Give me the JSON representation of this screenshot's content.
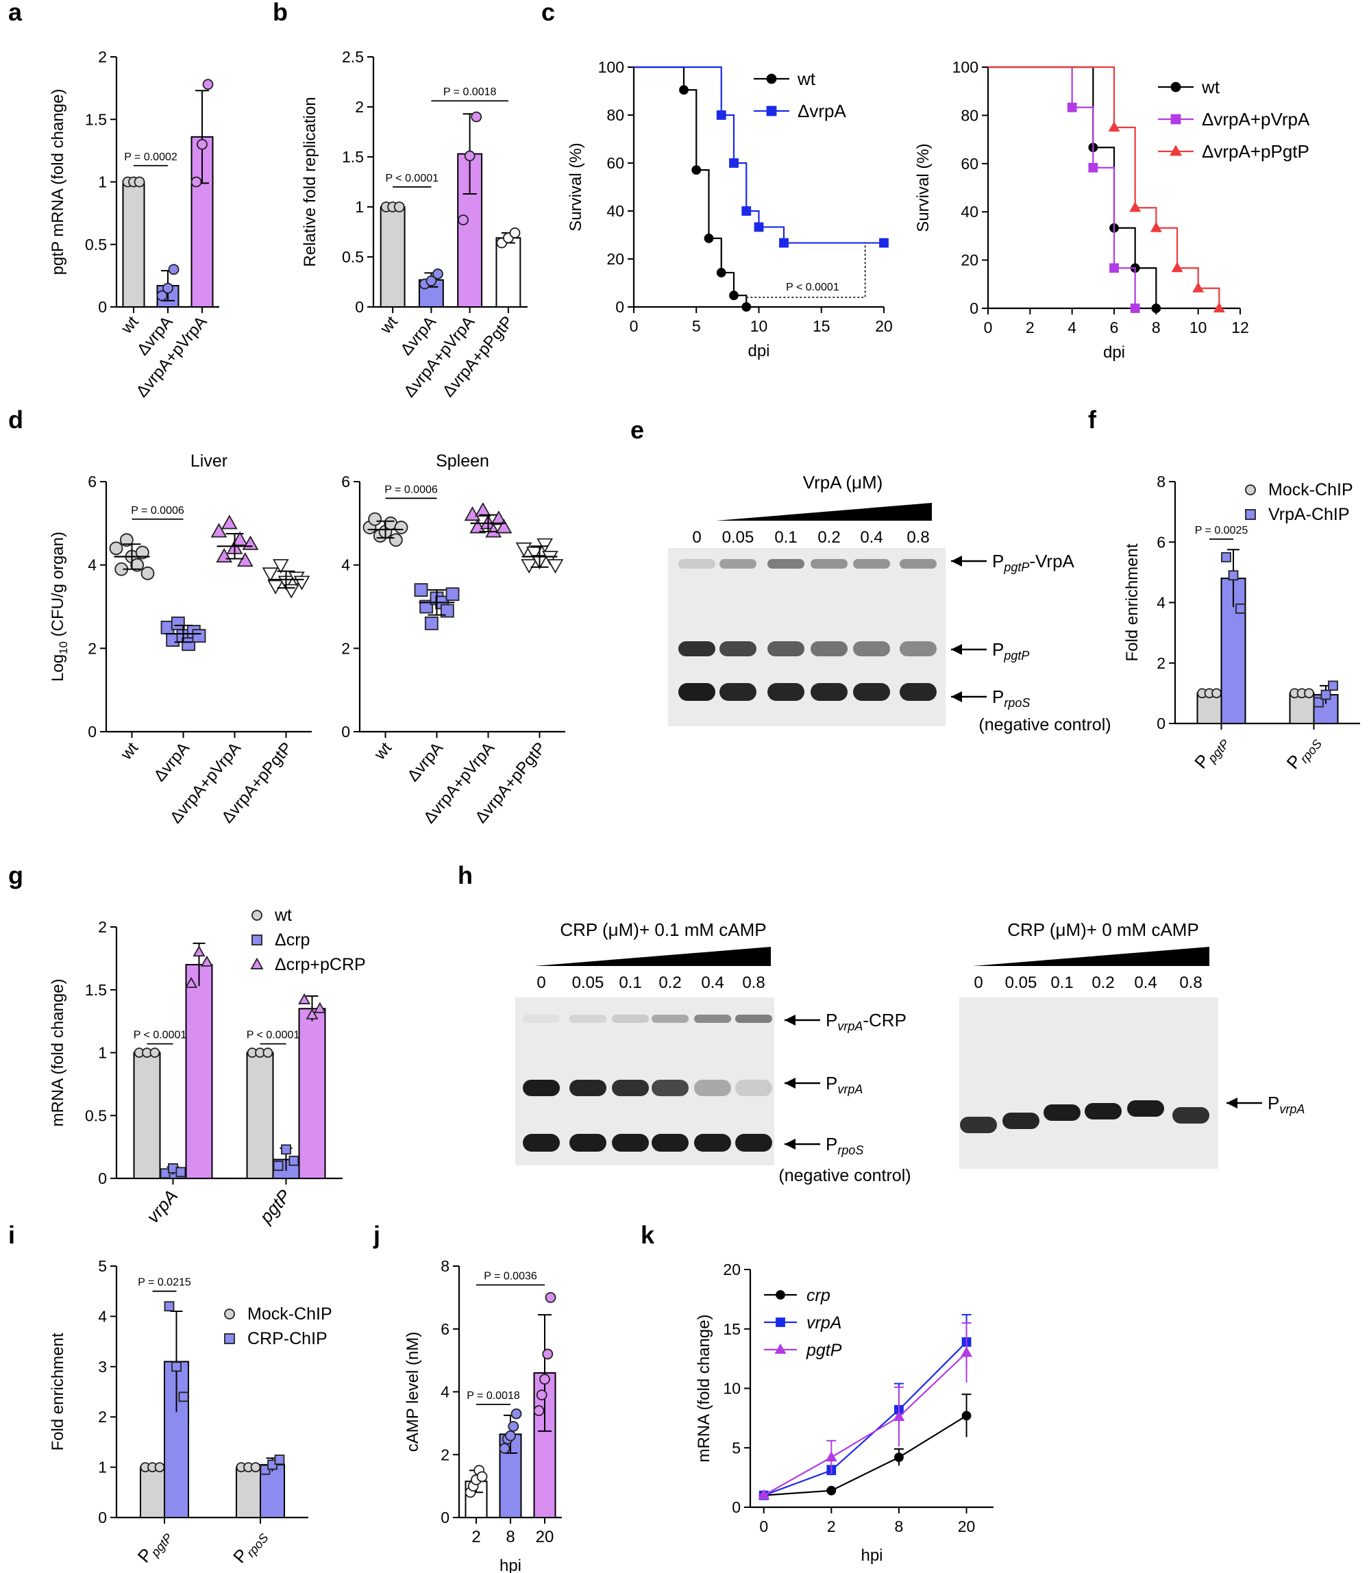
{
  "colors": {
    "wt": "#d3d3d3",
    "mutant": "#8b8bf0",
    "complement": "#d98ef2",
    "open": "#ffffff",
    "blue_line": "#1a2ae8",
    "purple_line": "#b23be6",
    "red_line": "#ee3b3b",
    "black": "#000000"
  },
  "chart_data": [
    {
      "panel": "a",
      "type": "bar",
      "title": "",
      "ylabel": "pgtP mRNA (fold change)",
      "ylim": [
        0,
        2.0
      ],
      "yticks": [
        0,
        0.5,
        1.0,
        1.5,
        2.0
      ],
      "categories": [
        "wt",
        "ΔvrpA",
        "ΔvrpA+pVrpA"
      ],
      "values": [
        1.0,
        0.17,
        1.36
      ],
      "errors": [
        0,
        0.12,
        0.37
      ],
      "points": [
        [
          1.0,
          1.0,
          1.0
        ],
        [
          0.09,
          0.15,
          0.3
        ],
        [
          1.0,
          1.3,
          1.78
        ]
      ],
      "colors": [
        "wt",
        "mutant",
        "complement"
      ],
      "markers": [
        "circle",
        "circle",
        "circle"
      ],
      "comparisons": [
        {
          "from": 0,
          "to": 1,
          "y": 1.13,
          "label": "P = 0.0002"
        }
      ]
    },
    {
      "panel": "b",
      "type": "bar",
      "title": "",
      "ylabel": "Relative fold replication",
      "ylim": [
        0,
        2.5
      ],
      "yticks": [
        0,
        0.5,
        1.0,
        1.5,
        2.0,
        2.5
      ],
      "categories": [
        "wt",
        "ΔvrpA",
        "ΔvrpA+pVrpA",
        "ΔvrpA+pPgtP"
      ],
      "values": [
        1.0,
        0.27,
        1.53,
        0.69
      ],
      "errors": [
        0,
        0.07,
        0.4,
        0.05
      ],
      "points": [
        [
          1.0,
          1.0,
          1.0
        ],
        [
          0.23,
          0.26,
          0.33
        ],
        [
          0.87,
          1.51,
          1.9
        ],
        [
          0.64,
          0.69,
          0.74
        ]
      ],
      "colors": [
        "wt",
        "mutant",
        "complement",
        "open"
      ],
      "markers": [
        "circle",
        "circle",
        "circle",
        "circle"
      ],
      "comparisons": [
        {
          "from": 0,
          "to": 1,
          "y": 1.2,
          "label": "P < 0.0001"
        },
        {
          "from": 1,
          "to": 3,
          "y": 2.06,
          "label": "P = 0.0018"
        }
      ]
    },
    {
      "panel": "c-left",
      "type": "line",
      "subtype": "survival",
      "xlabel": "dpi",
      "ylabel": "Survival (%)",
      "xlim": [
        0,
        20
      ],
      "ylim": [
        0,
        100
      ],
      "xticks": [
        0,
        5,
        10,
        15,
        20
      ],
      "yticks": [
        0,
        20,
        40,
        60,
        80,
        100
      ],
      "series": [
        {
          "name": "wt",
          "color": "black",
          "marker": "circle",
          "x": [
            0,
            4,
            5,
            6,
            7,
            8,
            9
          ],
          "y": [
            100,
            90.5,
            57.1,
            28.6,
            14.3,
            4.8,
            0
          ]
        },
        {
          "name": "ΔvrpA",
          "color": "blue_line",
          "marker": "square",
          "x": [
            0,
            7,
            8,
            9,
            10,
            12,
            20
          ],
          "y": [
            100,
            80,
            60,
            40,
            33.3,
            26.7,
            26.7
          ]
        }
      ],
      "annotation": "P < 0.0001"
    },
    {
      "panel": "c-right",
      "type": "line",
      "subtype": "survival",
      "xlabel": "dpi",
      "ylabel": "Survival (%)",
      "xlim": [
        0,
        12
      ],
      "ylim": [
        0,
        100
      ],
      "xticks": [
        0,
        2,
        4,
        6,
        8,
        10,
        12
      ],
      "yticks": [
        0,
        20,
        40,
        60,
        80,
        100
      ],
      "series": [
        {
          "name": "wt",
          "color": "black",
          "marker": "circle",
          "x": [
            0,
            5,
            6,
            7,
            8
          ],
          "y": [
            100,
            66.7,
            33.3,
            16.7,
            0
          ]
        },
        {
          "name": "ΔvrpA+pVrpA",
          "color": "purple_line",
          "marker": "square",
          "x": [
            0,
            4,
            5,
            6,
            7
          ],
          "y": [
            100,
            83.3,
            58.3,
            16.7,
            0
          ]
        },
        {
          "name": "ΔvrpA+pPgtP",
          "color": "red_line",
          "marker": "triangle",
          "x": [
            0,
            6,
            7,
            8,
            9,
            10,
            11
          ],
          "y": [
            100,
            75,
            41.7,
            33.3,
            16.7,
            8.3,
            0
          ]
        }
      ]
    },
    {
      "panel": "d-liver",
      "type": "scatter",
      "title": "Liver",
      "ylabel": "Log10 (CFU/g organ)",
      "ylim": [
        0,
        6
      ],
      "yticks": [
        0,
        2,
        4,
        6
      ],
      "categories": [
        "wt",
        "ΔvrpA",
        "ΔvrpA+pVrpA",
        "ΔvrpA+pPgtP"
      ],
      "means": [
        4.2,
        2.35,
        4.45,
        3.65
      ],
      "sd": [
        0.3,
        0.2,
        0.3,
        0.2
      ],
      "points": [
        [
          4.4,
          3.9,
          4.6,
          4.2,
          4.0,
          4.3,
          3.8
        ],
        [
          2.5,
          2.2,
          2.6,
          2.3,
          2.1,
          2.4,
          2.3
        ],
        [
          4.8,
          4.2,
          5.0,
          4.4,
          4.6,
          4.1,
          4.5
        ],
        [
          3.8,
          3.5,
          4.0,
          3.6,
          3.4,
          3.7,
          3.6
        ]
      ],
      "colors": [
        "wt",
        "mutant",
        "complement",
        "open"
      ],
      "markers": [
        "circle",
        "square",
        "triangle",
        "triangle-down"
      ],
      "comparisons": [
        {
          "from": 0,
          "to": 1,
          "y": 5.1,
          "label": "P = 0.0006"
        }
      ]
    },
    {
      "panel": "d-spleen",
      "type": "scatter",
      "title": "Spleen",
      "ylabel": "",
      "ylim": [
        0,
        6
      ],
      "yticks": [
        0,
        2,
        4,
        6
      ],
      "categories": [
        "wt",
        "ΔvrpA",
        "ΔvrpA+pVrpA",
        "ΔvrpA+pPgtP"
      ],
      "means": [
        4.85,
        3.1,
        5.0,
        4.2
      ],
      "sd": [
        0.2,
        0.3,
        0.2,
        0.25
      ],
      "points": [
        [
          4.9,
          5.1,
          4.7,
          4.8,
          5.0,
          4.6,
          4.9
        ],
        [
          3.4,
          3.0,
          2.6,
          3.2,
          3.1,
          2.9,
          3.3
        ],
        [
          5.2,
          4.9,
          5.3,
          5.0,
          4.8,
          5.1,
          4.9
        ],
        [
          4.4,
          4.0,
          4.3,
          4.1,
          4.5,
          4.2,
          4.0
        ]
      ],
      "colors": [
        "wt",
        "mutant",
        "complement",
        "open"
      ],
      "markers": [
        "circle",
        "square",
        "triangle",
        "triangle-down"
      ],
      "comparisons": [
        {
          "from": 0,
          "to": 1,
          "y": 5.6,
          "label": "P = 0.0006"
        }
      ]
    },
    {
      "panel": "f",
      "type": "bar",
      "subtype": "grouped",
      "ylabel": "Fold enrichment",
      "ylim": [
        0,
        8
      ],
      "yticks": [
        0,
        2,
        4,
        6,
        8
      ],
      "groups": [
        {
          "main": "P",
          "sub": "pgtP"
        },
        {
          "main": "P",
          "sub": "rpoS"
        }
      ],
      "series": [
        {
          "name": "Mock-ChIP",
          "color": "wt",
          "marker": "circle",
          "values": [
            1.0,
            1.0
          ],
          "errors": [
            0,
            0
          ],
          "points": [
            [
              1,
              1,
              1
            ],
            [
              1,
              1,
              1
            ]
          ]
        },
        {
          "name": "VrpA-ChIP",
          "color": "mutant",
          "marker": "square",
          "values": [
            4.8,
            0.95
          ],
          "errors": [
            0.95,
            0.3
          ],
          "points": [
            [
              5.5,
              4.9,
              3.8
            ],
            [
              0.7,
              0.95,
              1.25
            ]
          ]
        }
      ],
      "comparisons": [
        {
          "group": 0,
          "y": 6.1,
          "label": "P = 0.0025"
        }
      ]
    },
    {
      "panel": "g",
      "type": "bar",
      "subtype": "grouped",
      "ylabel": "mRNA (fold change)",
      "ylim": [
        0,
        2.0
      ],
      "yticks": [
        0,
        0.5,
        1.0,
        1.5,
        2.0
      ],
      "groups": [
        {
          "main": "vrpA",
          "sub": ""
        },
        {
          "main": "pgtP",
          "sub": ""
        }
      ],
      "series": [
        {
          "name": "wt",
          "color": "wt",
          "marker": "circle",
          "values": [
            1.0,
            1.0
          ],
          "errors": [
            0,
            0
          ],
          "points": [
            [
              1,
              1,
              1
            ],
            [
              1,
              1,
              1
            ]
          ]
        },
        {
          "name": "Δcrp",
          "color": "mutant",
          "marker": "square",
          "values": [
            0.06,
            0.15
          ],
          "errors": [
            0.03,
            0.09
          ],
          "points": [
            [
              0.04,
              0.08,
              0.05
            ],
            [
              0.1,
              0.23,
              0.14
            ]
          ]
        },
        {
          "name": "Δcrp+pCRP",
          "color": "complement",
          "marker": "triangle",
          "values": [
            1.7,
            1.35
          ],
          "errors": [
            0.17,
            0.1
          ],
          "points": [
            [
              1.55,
              1.8,
              1.72
            ],
            [
              1.42,
              1.3,
              1.35
            ]
          ]
        }
      ],
      "comparisons": [
        {
          "group": 0,
          "y": 1.07,
          "label": "P < 0.0001"
        },
        {
          "group": 1,
          "y": 1.07,
          "label": "P < 0.0001"
        }
      ]
    },
    {
      "panel": "i",
      "type": "bar",
      "subtype": "grouped",
      "ylabel": "Fold enrichment",
      "ylim": [
        0,
        5
      ],
      "yticks": [
        0,
        1,
        2,
        3,
        4,
        5
      ],
      "groups": [
        {
          "main": "P",
          "sub": "pgtP"
        },
        {
          "main": "P",
          "sub": "rpoS"
        }
      ],
      "series": [
        {
          "name": "Mock-ChIP",
          "color": "wt",
          "marker": "circle",
          "values": [
            1.0,
            1.0
          ],
          "errors": [
            0,
            0
          ],
          "points": [
            [
              1,
              1,
              1
            ],
            [
              1,
              1,
              1
            ]
          ]
        },
        {
          "name": "CRP-ChIP",
          "color": "mutant",
          "marker": "square",
          "values": [
            3.1,
            1.05
          ],
          "errors": [
            1.0,
            0.13
          ],
          "points": [
            [
              4.2,
              3.0,
              2.4
            ],
            [
              0.95,
              1.05,
              1.15
            ]
          ]
        }
      ],
      "comparisons": [
        {
          "group": 0,
          "y": 4.5,
          "label": "P = 0.0215"
        }
      ]
    },
    {
      "panel": "j",
      "type": "bar",
      "xlabel": "hpi",
      "ylabel": "cAMP level (nM)",
      "ylim": [
        0,
        8
      ],
      "yticks": [
        0,
        2,
        4,
        6,
        8
      ],
      "categories": [
        "2",
        "8",
        "20"
      ],
      "values": [
        1.15,
        2.65,
        4.6
      ],
      "errors": [
        0.35,
        0.6,
        1.85
      ],
      "points": [
        [
          0.8,
          1.0,
          1.2,
          1.5,
          1.3
        ],
        [
          2.2,
          2.5,
          2.6,
          2.9,
          3.3
        ],
        [
          3.4,
          3.9,
          4.4,
          5.2,
          7.0
        ]
      ],
      "colors": [
        "open",
        "mutant",
        "complement"
      ],
      "markers": [
        "circle",
        "circle",
        "circle"
      ],
      "comparisons": [
        {
          "from": 0,
          "to": 1,
          "y": 3.6,
          "label": "P = 0.0018"
        },
        {
          "from": 0,
          "to": 2,
          "y": 7.4,
          "label": "P = 0.0036"
        }
      ]
    },
    {
      "panel": "k",
      "type": "line",
      "xlabel": "hpi",
      "ylabel": "mRNA (fold change)",
      "ylim": [
        0,
        20
      ],
      "yticks": [
        0,
        5,
        10,
        15,
        20
      ],
      "categories": [
        "0",
        "2",
        "8",
        "20"
      ],
      "series": [
        {
          "name": "crp",
          "color": "black",
          "marker": "circle",
          "values": [
            1.0,
            1.4,
            4.2,
            7.7
          ],
          "errors": [
            0.1,
            0.1,
            0.7,
            1.8
          ]
        },
        {
          "name": "vrpA",
          "color": "blue_line",
          "marker": "square",
          "values": [
            1.0,
            3.1,
            8.2,
            13.9
          ],
          "errors": [
            0.1,
            0.4,
            2.2,
            2.3
          ]
        },
        {
          "name": "pgtP",
          "color": "purple_line",
          "marker": "triangle",
          "values": [
            1.0,
            4.2,
            7.6,
            13.0
          ],
          "errors": [
            0.1,
            1.4,
            2.5,
            2.5
          ]
        }
      ]
    }
  ],
  "gels": {
    "e": {
      "title": "VrpA (μM)",
      "lanes": [
        "0",
        "0.05",
        "0.1",
        "0.2",
        "0.4",
        "0.8"
      ],
      "labels": [
        {
          "main": "P",
          "sub": "pgtP",
          "suffix": "-VrpA"
        },
        {
          "main": "P",
          "sub": "pgtP",
          "suffix": ""
        },
        {
          "main": "P",
          "sub": "rpoS",
          "suffix": ""
        }
      ],
      "note": "(negative control)"
    },
    "h1": {
      "title": "CRP (μM)+ 0.1 mM cAMP",
      "lanes": [
        "0",
        "0.05",
        "0.1",
        "0.2",
        "0.4",
        "0.8"
      ],
      "labels": [
        {
          "main": "P",
          "sub": "vrpA",
          "suffix": "-CRP"
        },
        {
          "main": "P",
          "sub": "vrpA",
          "suffix": ""
        },
        {
          "main": "P",
          "sub": "rpoS",
          "suffix": ""
        }
      ],
      "note": "(negative control)"
    },
    "h2": {
      "title": "CRP (μM)+ 0 mM cAMP",
      "lanes": [
        "0",
        "0.05",
        "0.1",
        "0.2",
        "0.4",
        "0.8"
      ],
      "labels": [
        {
          "main": "P",
          "sub": "vrpA",
          "suffix": ""
        }
      ]
    }
  },
  "panel_letters": {
    "a": "a",
    "b": "b",
    "c": "c",
    "d": "d",
    "e": "e",
    "f": "f",
    "g": "g",
    "h": "h",
    "i": "i",
    "j": "j",
    "k": "k"
  }
}
